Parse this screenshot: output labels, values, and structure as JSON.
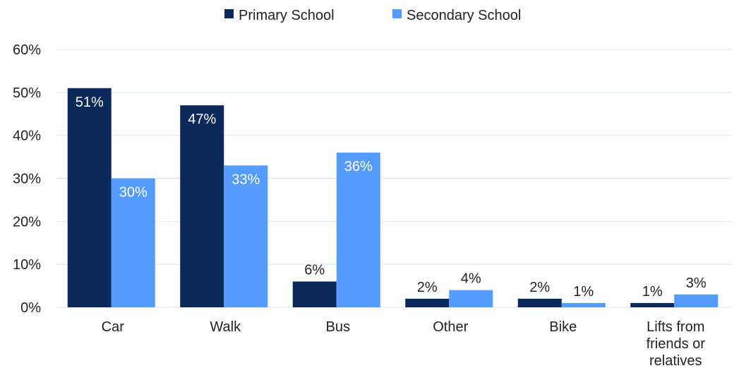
{
  "chart_data": {
    "type": "bar",
    "categories": [
      "Car",
      "Walk",
      "Bus",
      "Other",
      "Bike",
      "Lifts from friends or relatives"
    ],
    "category_label_lines": [
      [
        "Car"
      ],
      [
        "Walk"
      ],
      [
        "Bus"
      ],
      [
        "Other"
      ],
      [
        "Bike"
      ],
      [
        "Lifts from",
        "friends or",
        "relatives"
      ]
    ],
    "series": [
      {
        "name": "Primary School",
        "values": [
          51,
          47,
          6,
          2,
          2,
          1
        ],
        "labels": [
          "51%",
          "47%",
          "6%",
          "2%",
          "2%",
          "1%"
        ],
        "label_position": [
          "inside",
          "inside",
          "outside",
          "outside",
          "outside",
          "outside"
        ],
        "color": "#0b2a5b"
      },
      {
        "name": "Secondary School",
        "values": [
          30,
          33,
          36,
          4,
          1,
          3
        ],
        "labels": [
          "30%",
          "33%",
          "36%",
          "4%",
          "1%",
          "3%"
        ],
        "label_position": [
          "inside",
          "inside",
          "inside",
          "outside",
          "outside",
          "outside"
        ],
        "color": "#559cff"
      }
    ],
    "title": "",
    "xlabel": "",
    "ylabel": "",
    "ylim": [
      0,
      60
    ],
    "yticks": [
      0,
      10,
      20,
      30,
      40,
      50,
      60
    ],
    "ytick_labels": [
      "0%",
      "10%",
      "20%",
      "30%",
      "40%",
      "50%",
      "60%"
    ],
    "grid": true,
    "legend_position": "top-center"
  },
  "colors": {
    "gridline": "#d9e6f2",
    "axis_text": "#222222",
    "inside_label_text": "#ffffff",
    "outside_label_text": "#222222"
  }
}
